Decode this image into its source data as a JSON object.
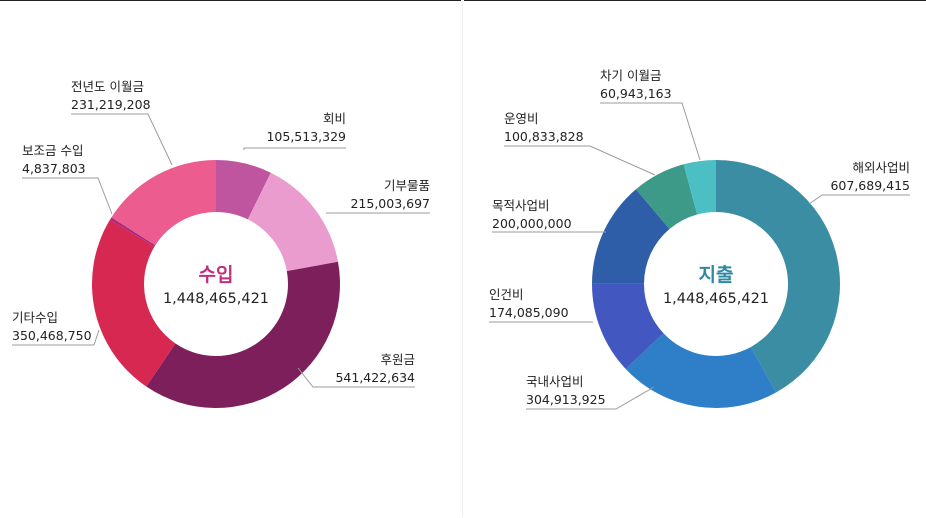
{
  "chart_data": [
    {
      "type": "pie",
      "title": "수입",
      "total": "1,448,465,421",
      "title_color": "#c0307f",
      "slices": [
        {
          "label": "회비",
          "display": "105,513,329",
          "value": 105513329,
          "color": "#bf559f"
        },
        {
          "label": "기부물품",
          "display": "215,003,697",
          "value": 215003697,
          "color": "#eb9ccf"
        },
        {
          "label": "후원금",
          "display": "541,422,634",
          "value": 541422634,
          "color": "#7c1f5b"
        },
        {
          "label": "기타수입",
          "display": "350,468,750",
          "value": 350468750,
          "color": "#d62851"
        },
        {
          "label": "보조금 수입",
          "display": "4,837,803",
          "value": 4837803,
          "color": "#a92784"
        },
        {
          "label": "전년도 이월금",
          "display": "231,219,208",
          "value": 231219208,
          "color": "#ec5c8e"
        }
      ]
    },
    {
      "type": "pie",
      "title": "지출",
      "total": "1,448,465,421",
      "title_color": "#2e88a3",
      "slices": [
        {
          "label": "해외사업비",
          "display": "607,689,415",
          "value": 607689415,
          "color": "#3a8da2"
        },
        {
          "label": "국내사업비",
          "display": "304,913,925",
          "value": 304913925,
          "color": "#2f7ec8"
        },
        {
          "label": "인건비",
          "display": "174,085,090",
          "value": 174085090,
          "color": "#4257c0"
        },
        {
          "label": "목적사업비",
          "display": "200,000,000",
          "value": 200000000,
          "color": "#2f5ea8"
        },
        {
          "label": "운영비",
          "display": "100,833,828",
          "value": 100833828,
          "color": "#3d9a88"
        },
        {
          "label": "차기 이월금",
          "display": "60,943,163",
          "value": 60943163,
          "color": "#4cbfc4"
        }
      ]
    }
  ]
}
